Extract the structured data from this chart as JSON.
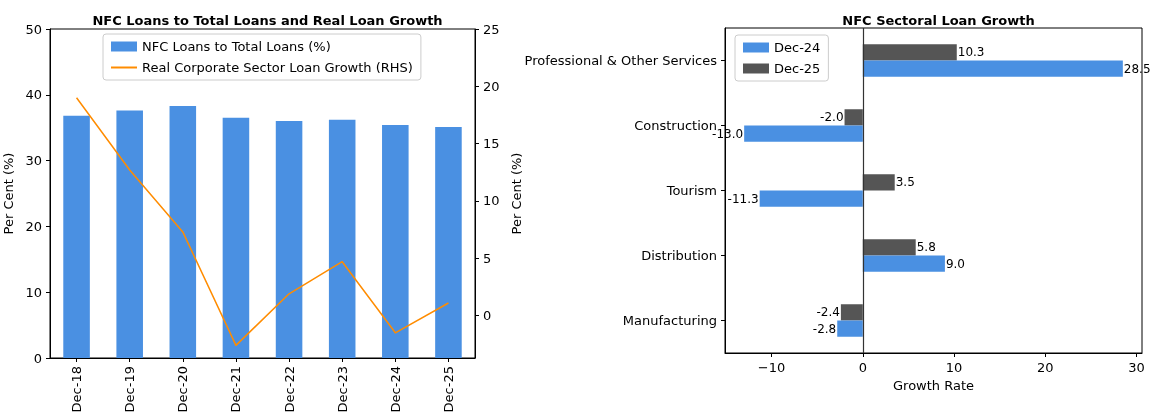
{
  "chart_data": [
    {
      "type": "bar",
      "title": "NFC Loans to Total Loans and Real Loan Growth",
      "ylabel": "Per Cent (%)",
      "y2label": "Per Cent (%)",
      "categories": [
        "Dec-18",
        "Dec-19",
        "Dec-20",
        "Dec-21",
        "Dec-22",
        "Dec-23",
        "Dec-24",
        "Dec-25"
      ],
      "series": [
        {
          "name": "NFC Loans to Total Loans (%)",
          "color": "#4a90e2",
          "values": [
            36.8,
            37.6,
            38.3,
            36.5,
            36.0,
            36.2,
            35.4,
            35.1
          ]
        },
        {
          "name": "Real Corporate Sector Loan Growth (RHS)",
          "type": "line",
          "axis": "y2",
          "color": "#ff8c00",
          "values": [
            19.0,
            12.7,
            7.3,
            -2.6,
            1.9,
            4.7,
            -1.5,
            1.1
          ]
        }
      ],
      "ylim": [
        0,
        50
      ],
      "yticks": [
        0,
        10,
        20,
        30,
        40,
        50
      ],
      "y2lim": [
        -3.7,
        25
      ],
      "y2ticks": [
        0,
        5,
        10,
        15,
        20,
        25
      ],
      "grid": false,
      "legend": "top",
      "marker": "none"
    },
    {
      "type": "bar",
      "orientation": "horizontal",
      "title": "NFC Sectoral Loan Growth",
      "xlabel": "Growth Rate",
      "categories": [
        "Professional & Other Services",
        "Construction",
        "Tourism",
        "Distribution",
        "Manufacturing"
      ],
      "series": [
        {
          "name": "Dec-24",
          "color": "#4a90e2",
          "values": [
            28.5,
            -13.0,
            -11.3,
            9.0,
            -2.8
          ],
          "value_labels": [
            "28.5",
            "-13.0",
            "-11.3",
            "9.0",
            "-2.8"
          ]
        },
        {
          "name": "Dec-25",
          "color": "#555555",
          "values": [
            10.3,
            -2.0,
            3.5,
            5.8,
            -2.4
          ],
          "value_labels": [
            "10.3",
            "-2.0",
            "3.5",
            "5.8",
            "-2.4"
          ]
        }
      ],
      "xlim": [
        -15.1,
        30.6
      ],
      "xticks": [
        -10,
        0,
        10,
        20,
        30
      ],
      "ref_lines": [
        {
          "axis": "x",
          "value": 0,
          "color": "#333333"
        }
      ],
      "grid": false,
      "legend": "top left"
    }
  ]
}
